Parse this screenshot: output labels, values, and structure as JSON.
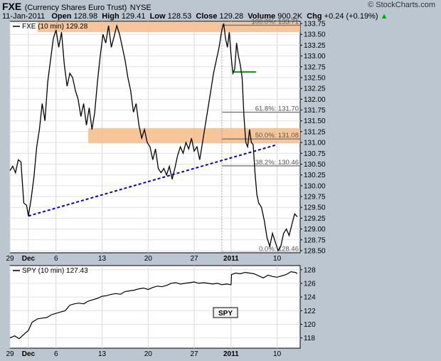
{
  "header": {
    "symbol": "FXE",
    "name": "(Currency Shares Euro Trust)",
    "exchange": "NYSE",
    "date": "11-Jan-2011",
    "open_label": "Open",
    "open": "128.98",
    "high_label": "High",
    "high": "129.41",
    "low_label": "Low",
    "low": "128.53",
    "close_label": "Close",
    "close": "129.28",
    "volume_label": "Volume",
    "volume": "900.2K",
    "chg_label": "Chg",
    "chg": "+0.24 (+0.19%)",
    "watermark": "© StockCharts.com",
    "arrow_color": "#00aa00"
  },
  "chart_data": [
    {
      "type": "line",
      "legend": "FXE (10 min) 129.28",
      "y_ticks": [
        "128.50",
        "128.75",
        "129.00",
        "129.25",
        "129.50",
        "129.75",
        "130.00",
        "130.25",
        "130.50",
        "130.75",
        "131.00",
        "131.25",
        "131.50",
        "131.75",
        "132.00",
        "132.25",
        "132.50",
        "132.75",
        "133.00",
        "133.25",
        "133.50",
        "133.75"
      ],
      "ylim": [
        128.45,
        133.8
      ],
      "x_labels": [
        {
          "label": "29",
          "x": 0
        },
        {
          "label": "Dec",
          "x": 2
        },
        {
          "label": "6",
          "x": 5
        },
        {
          "label": "13",
          "x": 10
        },
        {
          "label": "20",
          "x": 15
        },
        {
          "label": "27",
          "x": 20
        },
        {
          "label": "2011",
          "x": 24
        },
        {
          "label": "10",
          "x": 29
        }
      ],
      "xlim": [
        0,
        31.5
      ],
      "grid": true,
      "series": [
        {
          "points": [
            [
              0,
              130.35
            ],
            [
              0.3,
              130.45
            ],
            [
              0.6,
              130.3
            ],
            [
              0.9,
              130.6
            ],
            [
              1.2,
              130.55
            ],
            [
              1.5,
              129.6
            ],
            [
              1.8,
              129.55
            ],
            [
              2.0,
              129.3
            ],
            [
              2.3,
              129.7
            ],
            [
              2.6,
              130.2
            ],
            [
              2.9,
              130.9
            ],
            [
              3.2,
              131.3
            ],
            [
              3.5,
              131.9
            ],
            [
              3.8,
              131.5
            ],
            [
              4.1,
              132.4
            ],
            [
              4.4,
              132.9
            ],
            [
              4.7,
              133.4
            ],
            [
              5.0,
              133.6
            ],
            [
              5.3,
              133.2
            ],
            [
              5.6,
              133.55
            ],
            [
              5.9,
              132.8
            ],
            [
              6.2,
              132.3
            ],
            [
              6.5,
              132.6
            ],
            [
              6.8,
              132.5
            ],
            [
              7.1,
              132.2
            ],
            [
              7.4,
              132.0
            ],
            [
              7.7,
              131.6
            ],
            [
              8.0,
              131.9
            ],
            [
              8.3,
              131.4
            ],
            [
              8.6,
              131.8
            ],
            [
              8.9,
              131.3
            ],
            [
              9.2,
              131.7
            ],
            [
              9.5,
              132.4
            ],
            [
              9.8,
              133.0
            ],
            [
              10.1,
              133.5
            ],
            [
              10.4,
              133.3
            ],
            [
              10.7,
              133.7
            ],
            [
              11.0,
              133.2
            ],
            [
              11.3,
              133.45
            ],
            [
              11.6,
              133.7
            ],
            [
              11.9,
              133.5
            ],
            [
              12.2,
              133.2
            ],
            [
              12.5,
              132.9
            ],
            [
              12.8,
              132.5
            ],
            [
              13.1,
              132.2
            ],
            [
              13.4,
              131.7
            ],
            [
              13.7,
              131.9
            ],
            [
              14.0,
              131.4
            ],
            [
              14.3,
              131.1
            ],
            [
              14.6,
              131.3
            ],
            [
              14.9,
              131.0
            ],
            [
              15.2,
              130.9
            ],
            [
              15.5,
              130.6
            ],
            [
              15.8,
              130.85
            ],
            [
              16.1,
              130.4
            ],
            [
              16.4,
              130.3
            ],
            [
              16.7,
              130.4
            ],
            [
              17.0,
              130.25
            ],
            [
              17.3,
              130.45
            ],
            [
              17.6,
              130.15
            ],
            [
              17.9,
              130.4
            ],
            [
              18.2,
              130.7
            ],
            [
              18.5,
              130.9
            ],
            [
              18.8,
              130.75
            ],
            [
              19.1,
              131.0
            ],
            [
              19.4,
              130.85
            ],
            [
              19.7,
              131.1
            ],
            [
              20.0,
              130.8
            ],
            [
              20.3,
              130.9
            ],
            [
              20.6,
              130.6
            ],
            [
              20.9,
              131.0
            ],
            [
              21.2,
              131.4
            ],
            [
              21.5,
              131.8
            ],
            [
              21.8,
              132.2
            ],
            [
              22.1,
              132.6
            ],
            [
              22.4,
              132.9
            ],
            [
              22.7,
              133.2
            ],
            [
              23.0,
              133.6
            ],
            [
              23.2,
              133.75
            ],
            [
              23.4,
              133.4
            ],
            [
              23.6,
              133.2
            ],
            [
              23.8,
              133.55
            ],
            [
              24.0,
              133.0
            ],
            [
              24.2,
              132.6
            ],
            [
              24.4,
              132.7
            ],
            [
              24.6,
              133.3
            ],
            [
              24.8,
              133.0
            ],
            [
              25.0,
              132.8
            ],
            [
              25.2,
              132.5
            ],
            [
              25.4,
              131.6
            ],
            [
              25.6,
              131.0
            ],
            [
              25.8,
              130.9
            ],
            [
              26.0,
              131.3
            ],
            [
              26.2,
              131.0
            ],
            [
              26.4,
              130.95
            ],
            [
              26.6,
              130.3
            ],
            [
              26.8,
              129.8
            ],
            [
              27.0,
              129.6
            ],
            [
              27.3,
              129.5
            ],
            [
              27.6,
              129.2
            ],
            [
              27.9,
              128.8
            ],
            [
              28.2,
              128.6
            ],
            [
              28.5,
              128.9
            ],
            [
              28.8,
              128.7
            ],
            [
              29.1,
              128.5
            ],
            [
              29.4,
              128.6
            ],
            [
              29.7,
              128.9
            ],
            [
              30.0,
              129.0
            ],
            [
              30.3,
              128.85
            ],
            [
              30.6,
              129.1
            ],
            [
              30.9,
              129.35
            ],
            [
              31.2,
              129.28
            ]
          ]
        }
      ],
      "fibonacci": [
        {
          "label": "100.0%: 133.71",
          "value": 133.71
        },
        {
          "label": "61.8%: 131.70",
          "value": 131.7
        },
        {
          "label": "50.0%: 131.08",
          "value": 131.08
        },
        {
          "label": "38.2%: 130.46",
          "value": 130.46
        },
        {
          "label": "0.0%: 128.46",
          "value": 128.46
        }
      ],
      "resistance_zones": [
        {
          "from": 133.55,
          "to": 133.78,
          "x_start": 3.0
        },
        {
          "from": 130.98,
          "to": 131.33,
          "x_start": 8.5
        }
      ],
      "trendline": {
        "from": [
          2.0,
          129.3
        ],
        "to": [
          29.0,
          130.95
        ],
        "color": "#0000cc"
      },
      "flag": {
        "from": [
          24.2,
          132.63
        ],
        "to": [
          26.7,
          132.63
        ],
        "color": "#009900"
      },
      "zone_color": "#f5c08f"
    },
    {
      "type": "line",
      "legend": "SPY (10 min) 127.43",
      "label": "SPY",
      "y_ticks": [
        "118",
        "120",
        "122",
        "124",
        "126",
        "128"
      ],
      "ylim": [
        116.5,
        128.6
      ],
      "series": [
        {
          "points": [
            [
              0,
              118.0
            ],
            [
              0.5,
              118.3
            ],
            [
              1.0,
              117.9
            ],
            [
              1.5,
              118.5
            ],
            [
              2.0,
              119.1
            ],
            [
              2.4,
              120.3
            ],
            [
              3.0,
              120.8
            ],
            [
              3.5,
              120.9
            ],
            [
              4.0,
              121.0
            ],
            [
              4.5,
              121.4
            ],
            [
              5.0,
              121.6
            ],
            [
              5.5,
              121.8
            ],
            [
              6.0,
              122.0
            ],
            [
              6.5,
              122.8
            ],
            [
              7.0,
              123.0
            ],
            [
              7.5,
              123.1
            ],
            [
              8.0,
              123.0
            ],
            [
              8.5,
              123.4
            ],
            [
              9.0,
              123.6
            ],
            [
              9.5,
              123.8
            ],
            [
              10.0,
              124.1
            ],
            [
              10.5,
              124.2
            ],
            [
              11.0,
              124.4
            ],
            [
              11.5,
              124.5
            ],
            [
              12.0,
              124.4
            ],
            [
              12.5,
              124.8
            ],
            [
              13.0,
              124.9
            ],
            [
              13.5,
              125.0
            ],
            [
              14.0,
              125.2
            ],
            [
              14.5,
              125.3
            ],
            [
              15.0,
              125.1
            ],
            [
              15.5,
              125.4
            ],
            [
              16.0,
              125.6
            ],
            [
              16.5,
              125.5
            ],
            [
              17.0,
              125.7
            ],
            [
              17.5,
              126.0
            ],
            [
              18.0,
              126.1
            ],
            [
              18.5,
              125.9
            ],
            [
              19.0,
              126.0
            ],
            [
              19.5,
              126.1
            ],
            [
              20.0,
              126.2
            ],
            [
              20.5,
              126.0
            ],
            [
              21.0,
              126.1
            ],
            [
              21.5,
              126.0
            ],
            [
              22.0,
              125.9
            ],
            [
              22.5,
              126.0
            ],
            [
              23.0,
              125.8
            ],
            [
              23.5,
              125.9
            ],
            [
              24.0,
              125.8
            ],
            [
              24.05,
              127.3
            ],
            [
              24.5,
              127.5
            ],
            [
              25.0,
              127.4
            ],
            [
              25.5,
              127.6
            ],
            [
              26.0,
              127.5
            ],
            [
              26.5,
              127.4
            ],
            [
              27.0,
              127.1
            ],
            [
              27.5,
              126.8
            ],
            [
              28.0,
              127.2
            ],
            [
              28.5,
              127.0
            ],
            [
              29.0,
              126.9
            ],
            [
              29.5,
              127.1
            ],
            [
              30.0,
              127.3
            ],
            [
              30.5,
              127.7
            ],
            [
              31.0,
              127.6
            ],
            [
              31.2,
              127.43
            ]
          ]
        }
      ]
    }
  ]
}
